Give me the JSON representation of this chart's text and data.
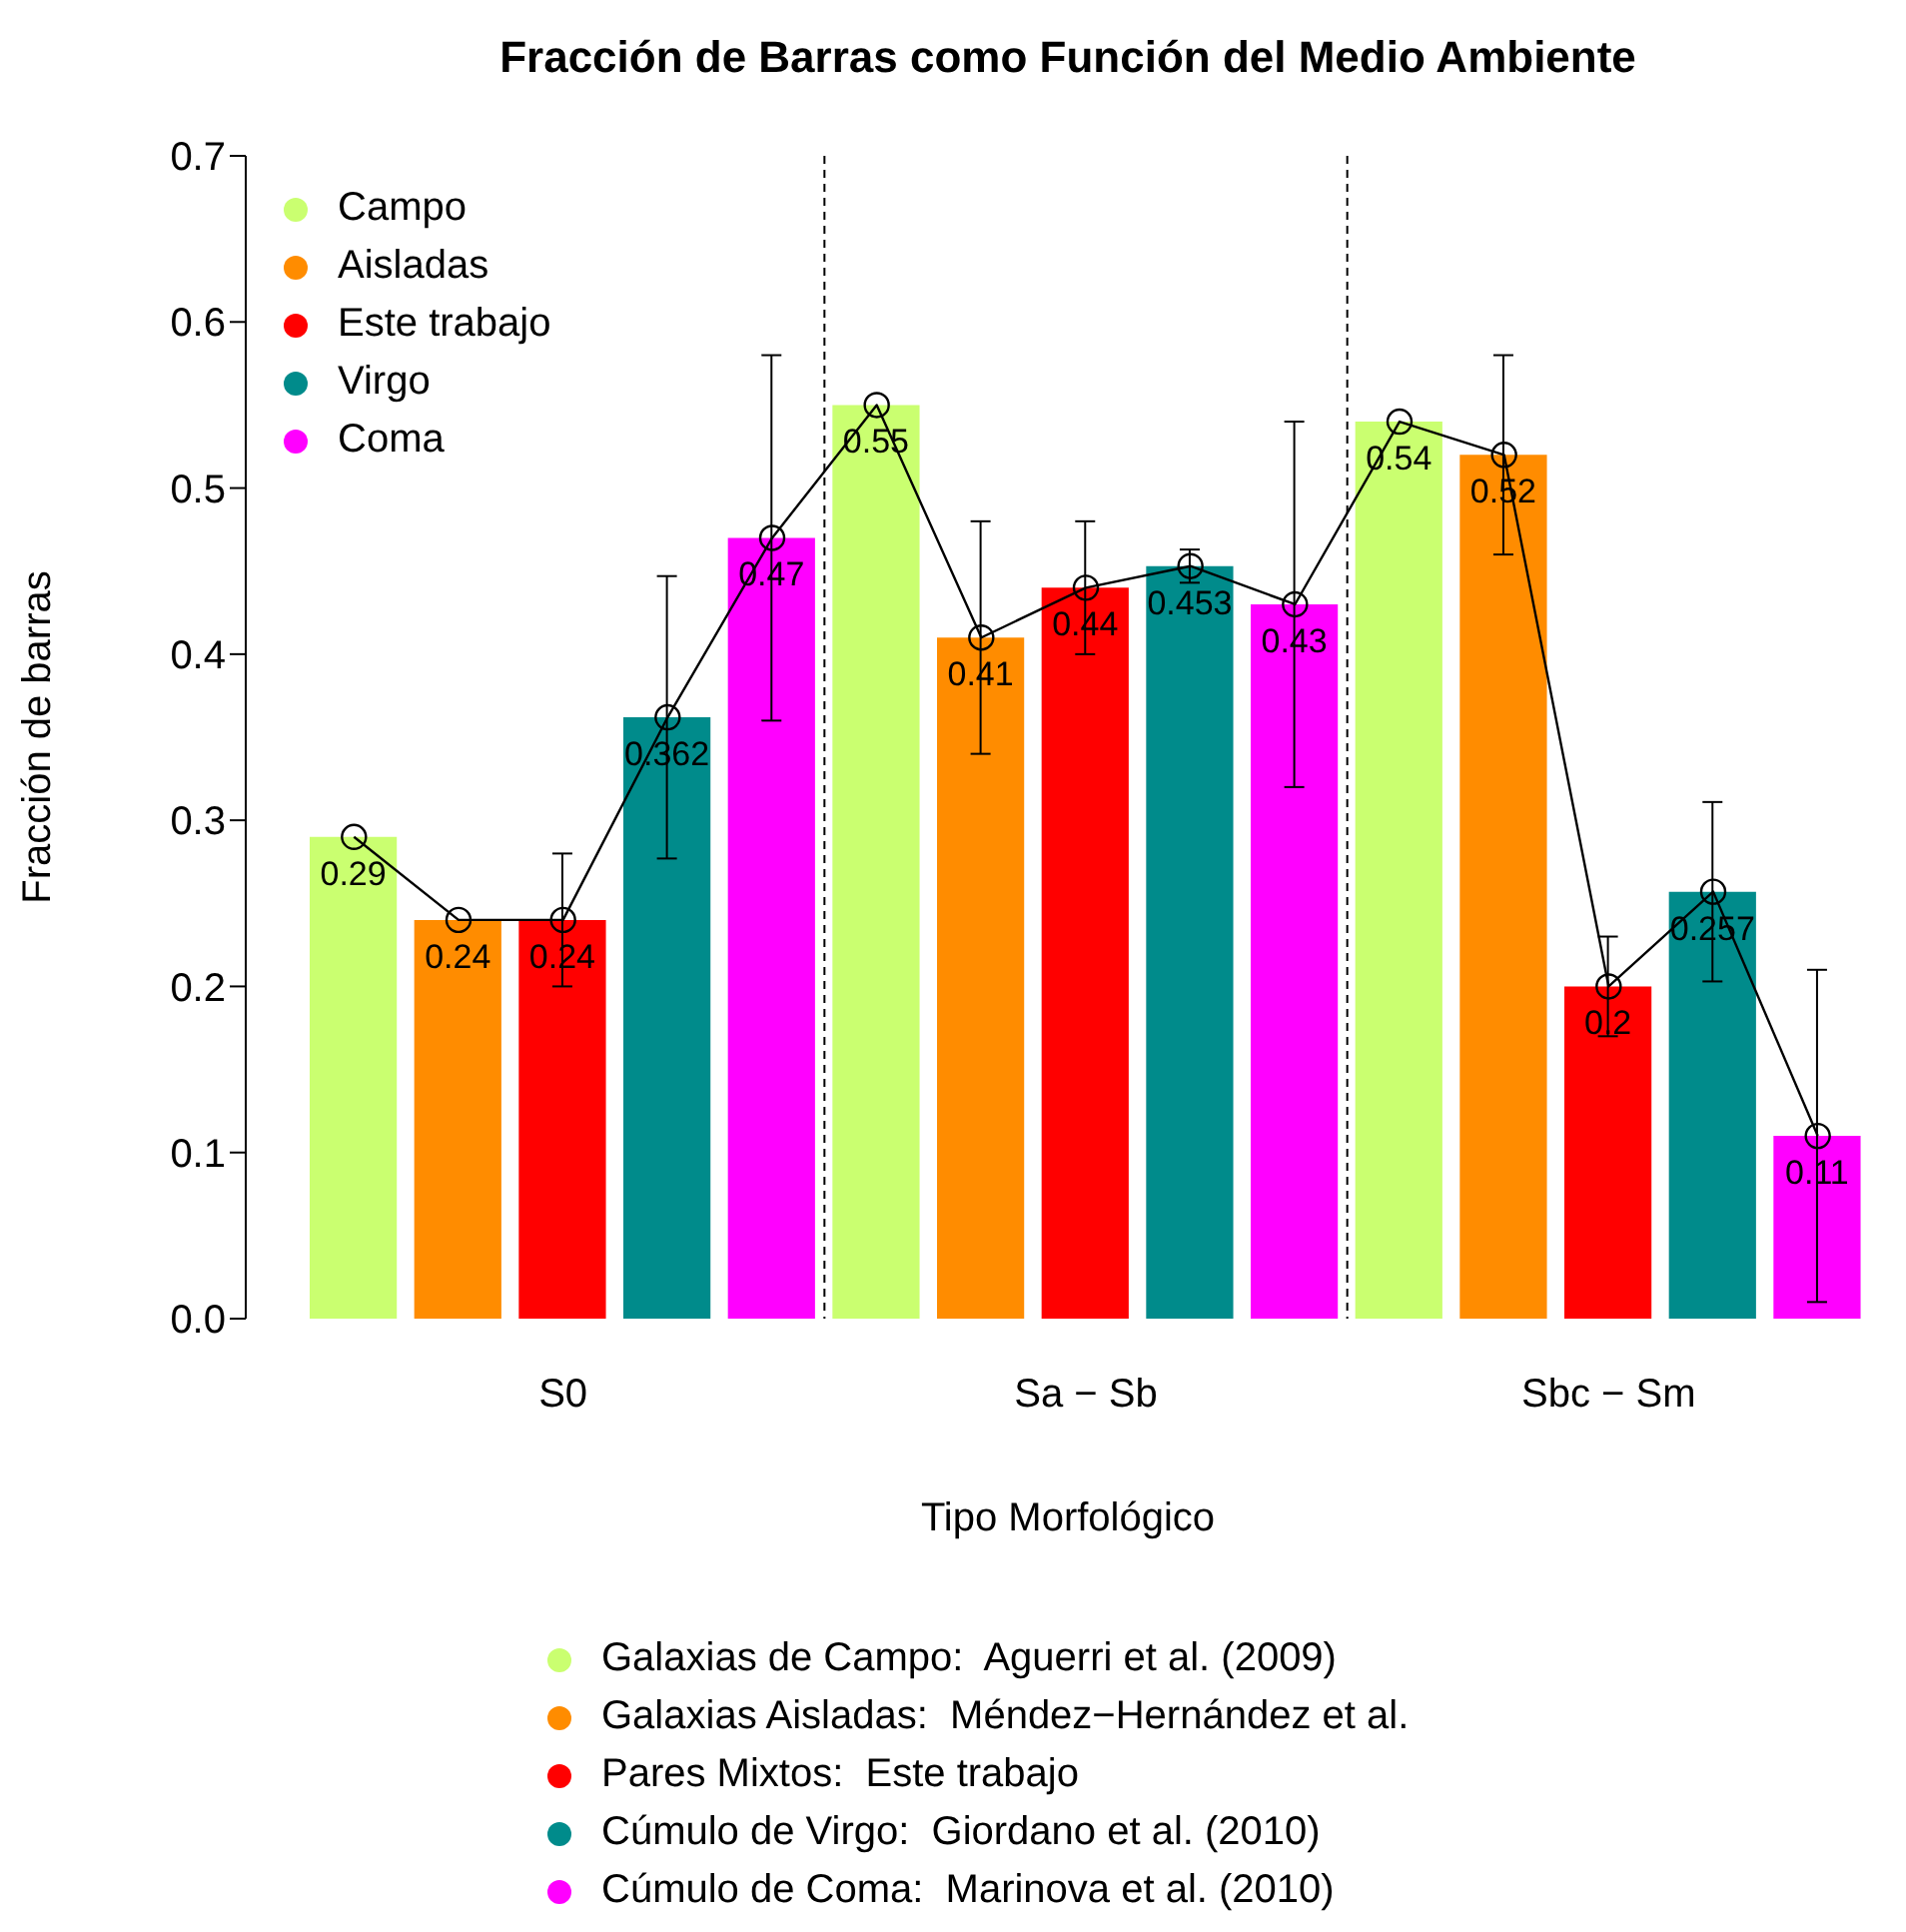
{
  "chart_data": {
    "type": "bar",
    "title": "Fracción de Barras como Función del Medio Ambiente",
    "xlabel": "Tipo Morfológico",
    "ylabel": "Fracción de barras",
    "categories": [
      null,
      null,
      "S0",
      null,
      null,
      null,
      null,
      "Sa − Sb",
      null,
      null,
      null,
      null,
      "Sbc − Sm",
      null,
      null
    ],
    "ylim": [
      0,
      0.7
    ],
    "yticks": [
      {
        "value": 0,
        "label": "0.0"
      },
      0.1,
      0.2,
      0.3,
      0.4,
      0.5,
      0.6,
      0.7
    ],
    "series": [
      {
        "name": "Campo",
        "color": "#caff70",
        "values": [
          0.29,
          null,
          null,
          null,
          null,
          0.55,
          null,
          null,
          null,
          null,
          0.54,
          null,
          null,
          null,
          null
        ],
        "value_labels": [
          "0.29",
          null,
          null,
          null,
          null,
          "0.55",
          null,
          null,
          null,
          null,
          "0.54",
          null,
          null,
          null,
          null
        ]
      },
      {
        "name": "Aisladas",
        "color": "#ff8c00",
        "values": [
          null,
          0.24,
          null,
          null,
          null,
          null,
          0.41,
          null,
          null,
          null,
          null,
          0.52,
          null,
          null,
          null
        ],
        "errors": [
          null,
          null,
          null,
          null,
          null,
          null,
          0.07,
          null,
          null,
          null,
          null,
          0.06,
          null,
          null,
          null
        ],
        "value_labels": [
          null,
          "0.24",
          null,
          null,
          null,
          null,
          "0.41",
          null,
          null,
          null,
          null,
          "0.52",
          null,
          null,
          null
        ]
      },
      {
        "name": "Este trabajo",
        "color": "#ff0000",
        "values": [
          null,
          null,
          0.24,
          null,
          null,
          null,
          null,
          0.44,
          null,
          null,
          null,
          null,
          0.2,
          null,
          null
        ],
        "errors": [
          null,
          null,
          0.04,
          null,
          null,
          null,
          null,
          0.04,
          null,
          null,
          null,
          null,
          0.03,
          null,
          null
        ],
        "value_labels": [
          null,
          null,
          "0.24",
          null,
          null,
          null,
          null,
          "0.44",
          null,
          null,
          null,
          null,
          "0.2",
          null,
          null
        ]
      },
      {
        "name": "Virgo",
        "color": "#008b8b",
        "values": [
          null,
          null,
          null,
          0.362,
          null,
          null,
          null,
          null,
          0.453,
          null,
          null,
          null,
          null,
          0.257,
          null
        ],
        "errors": [
          null,
          null,
          null,
          0.085,
          null,
          null,
          null,
          null,
          0.01,
          null,
          null,
          null,
          null,
          0.054,
          null
        ],
        "value_labels": [
          null,
          null,
          null,
          "0.362",
          null,
          null,
          null,
          null,
          "0.453",
          null,
          null,
          null,
          null,
          "0.257",
          null
        ]
      },
      {
        "name": "Coma",
        "color": "#ff00ff",
        "values": [
          null,
          null,
          null,
          null,
          0.47,
          null,
          null,
          null,
          null,
          0.43,
          null,
          null,
          null,
          null,
          0.11
        ],
        "errors": [
          null,
          null,
          null,
          null,
          0.11,
          null,
          null,
          null,
          null,
          0.11,
          null,
          null,
          null,
          null,
          0.1
        ],
        "value_labels": [
          null,
          null,
          null,
          null,
          "0.47",
          null,
          null,
          null,
          null,
          "0.43",
          null,
          null,
          null,
          null,
          "0.11"
        ]
      },
      {
        "type": "line",
        "color": "#000000",
        "marker": "circle",
        "line_style": "solid",
        "values": [
          0.29,
          0.24,
          0.24,
          0.362,
          0.47,
          0.55,
          0.41,
          0.44,
          0.453,
          0.43,
          0.54,
          0.52,
          0.2,
          0.257,
          0.11
        ]
      }
    ],
    "legend": "top left",
    "annotations": [
      "Galaxias de Campo:  Aguerri et al. (2009)",
      "Galaxias Aisladas:  Méndez−Hernández et al.",
      "Pares Mixtos:  Este trabajo",
      "Cúmulo de Virgo:  Giordano et al. (2010)",
      "Cúmulo de Coma:  Marinova et al. (2010)"
    ]
  }
}
